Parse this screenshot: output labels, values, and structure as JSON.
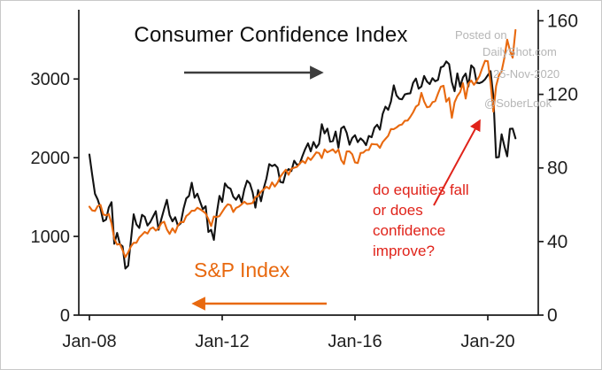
{
  "title": "Consumer Confidence Index",
  "sp_label": "S&P Index",
  "annotation": {
    "lines": [
      "do equities fall",
      "or does",
      "confidence",
      "improve?"
    ]
  },
  "watermark": {
    "lines": [
      "Posted on",
      "DailyShot.com",
      "25-Nov-2020",
      "@SoberLook"
    ]
  },
  "colors": {
    "sp_orange": "#e8690f",
    "confidence_black": "#121212",
    "annotation_red": "#e0231a",
    "arrow_gray": "#3d3d3d",
    "watermark_gray": "#b6b6b6",
    "axis_black": "#1a1a1a",
    "tick_text": "#222222"
  },
  "chart_data": {
    "type": "line",
    "title": "Consumer Confidence Index",
    "x_unit": "month",
    "x_start": "2008-01",
    "x_end": "2020-11",
    "x_tick_labels": [
      "Jan-08",
      "Jan-12",
      "Jan-16",
      "Jan-20"
    ],
    "x_tick_month_index": [
      0,
      48,
      96,
      144
    ],
    "grid": false,
    "legend": "in-plot labels with arrows",
    "left_axis": {
      "label": "S&P Index",
      "ticks": [
        0,
        1000,
        2000,
        3000
      ],
      "lim": [
        0,
        3880
      ]
    },
    "right_axis": {
      "label": "Consumer Confidence Index",
      "ticks": [
        0,
        40,
        80,
        120,
        160
      ],
      "lim": [
        0,
        166
      ]
    },
    "series": [
      {
        "name": "Consumer Confidence Index",
        "axis": "right",
        "color": "#121212",
        "values": [
          87.3,
          76.4,
          65.9,
          62.8,
          58.1,
          51.0,
          51.9,
          58.5,
          61.4,
          38.8,
          44.7,
          38.6,
          37.4,
          25.3,
          26.9,
          40.8,
          54.8,
          49.3,
          47.4,
          54.5,
          53.4,
          48.7,
          50.6,
          53.6,
          56.5,
          46.4,
          52.3,
          57.7,
          62.7,
          54.3,
          51.0,
          53.2,
          48.6,
          49.9,
          57.8,
          63.4,
          64.8,
          72.0,
          63.8,
          66.0,
          61.7,
          57.6,
          59.2,
          45.2,
          46.4,
          40.9,
          55.2,
          64.8,
          61.5,
          71.6,
          69.5,
          68.7,
          64.4,
          62.7,
          65.4,
          61.3,
          68.4,
          73.1,
          71.5,
          66.7,
          58.4,
          68.0,
          61.9,
          69.0,
          74.3,
          82.1,
          81.0,
          81.8,
          80.2,
          72.4,
          72.0,
          77.5,
          79.4,
          78.3,
          83.9,
          81.7,
          82.2,
          86.4,
          90.3,
          93.4,
          89.0,
          94.1,
          91.0,
          93.1,
          103.8,
          98.8,
          101.4,
          94.3,
          94.6,
          99.8,
          91.0,
          101.5,
          102.6,
          99.1,
          92.6,
          96.3,
          97.8,
          94.0,
          96.1,
          94.7,
          92.4,
          97.4,
          96.7,
          101.8,
          103.5,
          100.8,
          109.4,
          113.3,
          111.6,
          116.1,
          124.9,
          119.4,
          117.6,
          117.3,
          120.0,
          120.4,
          120.6,
          126.2,
          128.6,
          123.1,
          124.3,
          130.0,
          127.0,
          125.6,
          128.8,
          127.1,
          127.9,
          134.7,
          135.3,
          137.9,
          136.4,
          126.6,
          121.7,
          131.4,
          124.2,
          129.2,
          131.3,
          124.3,
          135.8,
          134.2,
          126.3,
          126.1,
          126.8,
          128.2,
          130.4,
          132.6,
          118.8,
          85.7,
          85.9,
          98.3,
          91.7,
          86.3,
          101.3,
          101.4,
          96.1
        ]
      },
      {
        "name": "S&P Index",
        "axis": "left",
        "color": "#e8690f",
        "values": [
          1378,
          1331,
          1323,
          1386,
          1400,
          1280,
          1267,
          1283,
          1166,
          969,
          896,
          903,
          826,
          735,
          798,
          873,
          919,
          919,
          987,
          1021,
          1057,
          1036,
          1096,
          1115,
          1074,
          1104,
          1169,
          1187,
          1089,
          1031,
          1102,
          1049,
          1141,
          1183,
          1181,
          1258,
          1286,
          1327,
          1326,
          1364,
          1345,
          1321,
          1292,
          1219,
          1131,
          1253,
          1247,
          1258,
          1312,
          1366,
          1408,
          1398,
          1310,
          1362,
          1379,
          1407,
          1441,
          1412,
          1416,
          1426,
          1498,
          1515,
          1569,
          1598,
          1631,
          1606,
          1686,
          1633,
          1682,
          1757,
          1806,
          1848,
          1783,
          1859,
          1872,
          1884,
          1924,
          1960,
          1931,
          2003,
          1972,
          2018,
          2068,
          2059,
          1995,
          2105,
          2068,
          2086,
          2107,
          2063,
          2104,
          1972,
          1920,
          2079,
          2080,
          2044,
          1940,
          1932,
          2060,
          2065,
          2097,
          2099,
          2174,
          2171,
          2168,
          2126,
          2199,
          2239,
          2279,
          2364,
          2363,
          2384,
          2412,
          2423,
          2470,
          2472,
          2519,
          2575,
          2648,
          2674,
          2824,
          2714,
          2641,
          2648,
          2705,
          2718,
          2816,
          2902,
          2914,
          2712,
          2760,
          2507,
          2704,
          2784,
          2834,
          2946,
          2752,
          2942,
          2980,
          2926,
          2977,
          3038,
          3141,
          3231,
          3226,
          2954,
          2585,
          2912,
          3044,
          3100,
          3271,
          3500,
          3363,
          3270,
          3622
        ]
      }
    ]
  }
}
